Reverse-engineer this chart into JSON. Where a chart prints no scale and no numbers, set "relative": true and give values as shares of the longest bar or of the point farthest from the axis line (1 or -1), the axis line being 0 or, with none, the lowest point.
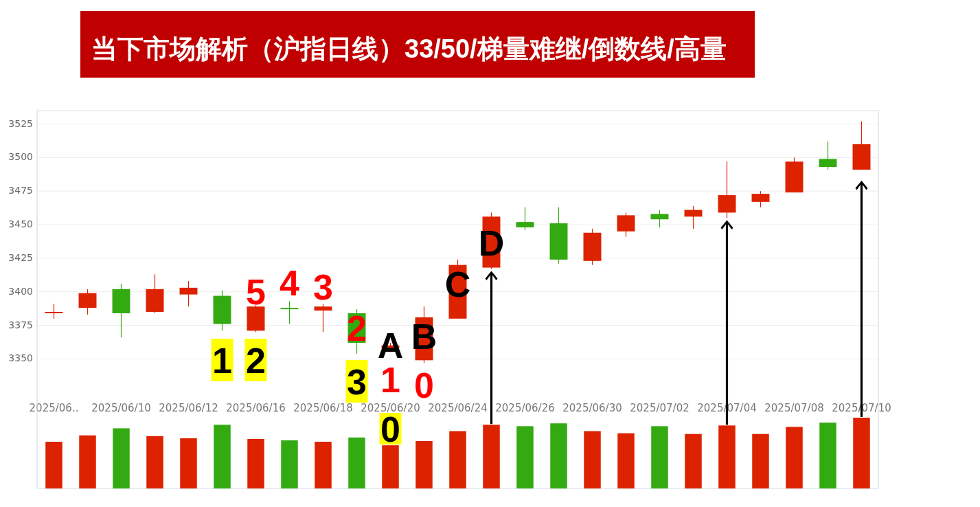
{
  "chart_data": [
    {
      "type": "candlestick",
      "title": "当下市场解析（沪指日线）33/50/梯量难继/倒数线/高量",
      "categories": [
        "2025/06..",
        null,
        "2025/06/10",
        null,
        "2025/06/12",
        null,
        "2025/06/16",
        null,
        "2025/06/18",
        null,
        "2025/06/20",
        null,
        "2025/06/24",
        null,
        "2025/06/26",
        null,
        "2025/06/30",
        null,
        "2025/07/02",
        null,
        "2025/07/04",
        null,
        "2025/07/08",
        null,
        "2025/07/10"
      ],
      "ohlc": [
        [
          3384,
          3391,
          3380,
          3385
        ],
        [
          3388,
          3402,
          3383,
          3399
        ],
        [
          3402,
          3406,
          3366,
          3384
        ],
        [
          3385,
          3413,
          3384,
          3402
        ],
        [
          3398,
          3408,
          3389,
          3403
        ],
        [
          3397,
          3401,
          3371,
          3376
        ],
        [
          3371,
          3390,
          3370,
          3389
        ],
        [
          3388,
          3393,
          3376,
          3387
        ],
        [
          3386,
          3391,
          3370,
          3389
        ],
        [
          3384,
          3387,
          3354,
          3362
        ],
        [
          3358,
          3362,
          3355,
          3360
        ],
        [
          3349,
          3389,
          3347,
          3381
        ],
        [
          3380,
          3424,
          3380,
          3420
        ],
        [
          3418,
          3459,
          3417,
          3456
        ],
        [
          3452,
          3463,
          3446,
          3448
        ],
        [
          3451,
          3463,
          3421,
          3424
        ],
        [
          3423,
          3447,
          3420,
          3444
        ],
        [
          3445,
          3459,
          3441,
          3457
        ],
        [
          3458,
          3461,
          3448,
          3454
        ],
        [
          3456,
          3464,
          3447,
          3461
        ],
        [
          3459,
          3497,
          3455,
          3472
        ],
        [
          3467,
          3475,
          3463,
          3473
        ],
        [
          3474,
          3500,
          3474,
          3497
        ],
        [
          3499,
          3512,
          3491,
          3493
        ],
        [
          3491,
          3527,
          3491,
          3510
        ]
      ],
      "colors": [
        "#dd2200",
        "#dd2200",
        "#33aa11",
        "#dd2200",
        "#dd2200",
        "#33aa11",
        "#dd2200",
        "#33aa11",
        "#dd2200",
        "#33aa11",
        "#dd2200",
        "#dd2200",
        "#dd2200",
        "#dd2200",
        "#33aa11",
        "#33aa11",
        "#dd2200",
        "#dd2200",
        "#33aa11",
        "#dd2200",
        "#dd2200",
        "#dd2200",
        "#dd2200",
        "#33aa11",
        "#dd2200"
      ],
      "ylim": [
        3320,
        3535
      ],
      "yticks": [
        3350,
        3375,
        3400,
        3425,
        3450,
        3475,
        3500,
        3525
      ],
      "grid": "y",
      "annotations": [
        "1",
        "2",
        "5",
        "4",
        "3",
        "2",
        "3",
        "A",
        "1",
        "0",
        "B",
        "0",
        "C",
        "D"
      ]
    },
    {
      "type": "bar",
      "relative": true,
      "categories": [
        null,
        null,
        null,
        null,
        null,
        null,
        null,
        null,
        null,
        null,
        null,
        null,
        null,
        null,
        null,
        null,
        null,
        null,
        null,
        null,
        null,
        null,
        null,
        null,
        null
      ],
      "values": [
        0.66,
        0.75,
        0.85,
        0.74,
        0.71,
        0.9,
        0.7,
        0.68,
        0.66,
        0.72,
        0.61,
        0.67,
        0.81,
        0.9,
        0.88,
        0.92,
        0.81,
        0.78,
        0.88,
        0.77,
        0.89,
        0.77,
        0.87,
        0.93,
        1
      ],
      "colors": [
        "#dd2200",
        "#dd2200",
        "#33aa11",
        "#dd2200",
        "#dd2200",
        "#33aa11",
        "#dd2200",
        "#33aa11",
        "#dd2200",
        "#33aa11",
        "#dd2200",
        "#dd2200",
        "#dd2200",
        "#dd2200",
        "#33aa11",
        "#33aa11",
        "#dd2200",
        "#dd2200",
        "#33aa11",
        "#dd2200",
        "#dd2200",
        "#dd2200",
        "#dd2200",
        "#33aa11",
        "#dd2200"
      ]
    }
  ]
}
